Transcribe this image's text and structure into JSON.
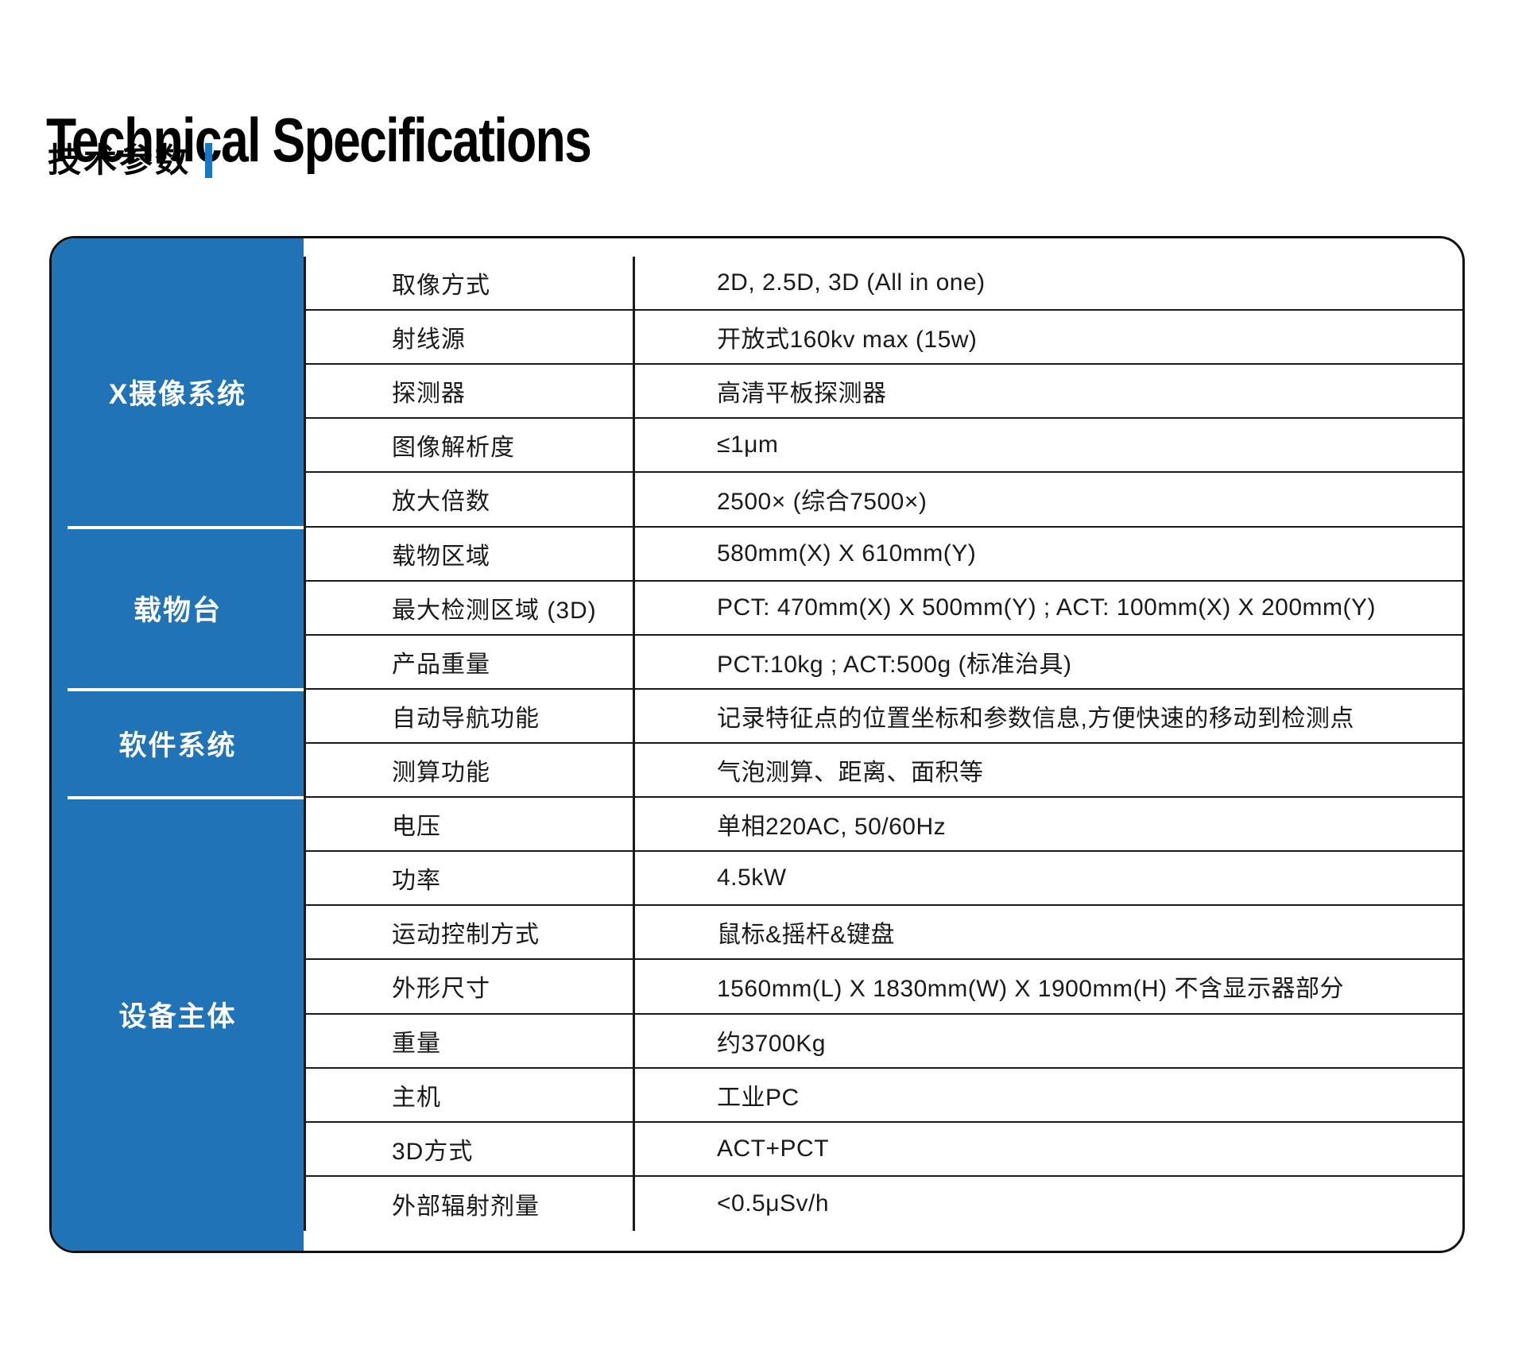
{
  "page": {
    "title": "Technical Specifications",
    "subtitle": "技术参数"
  },
  "colors": {
    "table_blue": "#2173B8",
    "accent_bar_blue": "#1B76C2",
    "text": "#1A1A1A",
    "line": "#1A1A1A"
  },
  "table": {
    "sections": [
      {
        "category": "X摄像系统",
        "rows": [
          {
            "name": "取像方式",
            "value": "2D, 2.5D, 3D (All in one)"
          },
          {
            "name": "射线源",
            "value": "开放式160kv max (15w)"
          },
          {
            "name": "探测器",
            "value": "高清平板探测器"
          },
          {
            "name": "图像解析度",
            "value": "≤1μm"
          },
          {
            "name": "放大倍数",
            "value": "2500× (综合7500×)"
          }
        ]
      },
      {
        "category": "载物台",
        "rows": [
          {
            "name": "载物区域",
            "value": "580mm(X) X 610mm(Y)"
          },
          {
            "name": "最大检测区域 (3D)",
            "value": "PCT: 470mm(X) X 500mm(Y) ; ACT: 100mm(X) X 200mm(Y)"
          },
          {
            "name": "产品重量",
            "value": "PCT:10kg ; ACT:500g (标准治具)"
          }
        ]
      },
      {
        "category": "软件系统",
        "rows": [
          {
            "name": "自动导航功能",
            "value": "记录特征点的位置坐标和参数信息,方便快速的移动到检测点"
          },
          {
            "name": "测算功能",
            "value": "气泡测算、距离、面积等"
          }
        ]
      },
      {
        "category": "设备主体",
        "rows": [
          {
            "name": "电压",
            "value": "单相220AC, 50/60Hz"
          },
          {
            "name": "功率",
            "value": "4.5kW"
          },
          {
            "name": "运动控制方式",
            "value": "鼠标&摇杆&键盘"
          },
          {
            "name": "外形尺寸",
            "value": "1560mm(L) X 1830mm(W) X 1900mm(H) 不含显示器部分"
          },
          {
            "name": "重量",
            "value": "约3700Kg"
          },
          {
            "name": "主机",
            "value": "工业PC"
          },
          {
            "name": "3D方式",
            "value": "ACT+PCT"
          },
          {
            "name": "外部辐射剂量",
            "value": "<0.5μSv/h"
          }
        ]
      }
    ]
  }
}
